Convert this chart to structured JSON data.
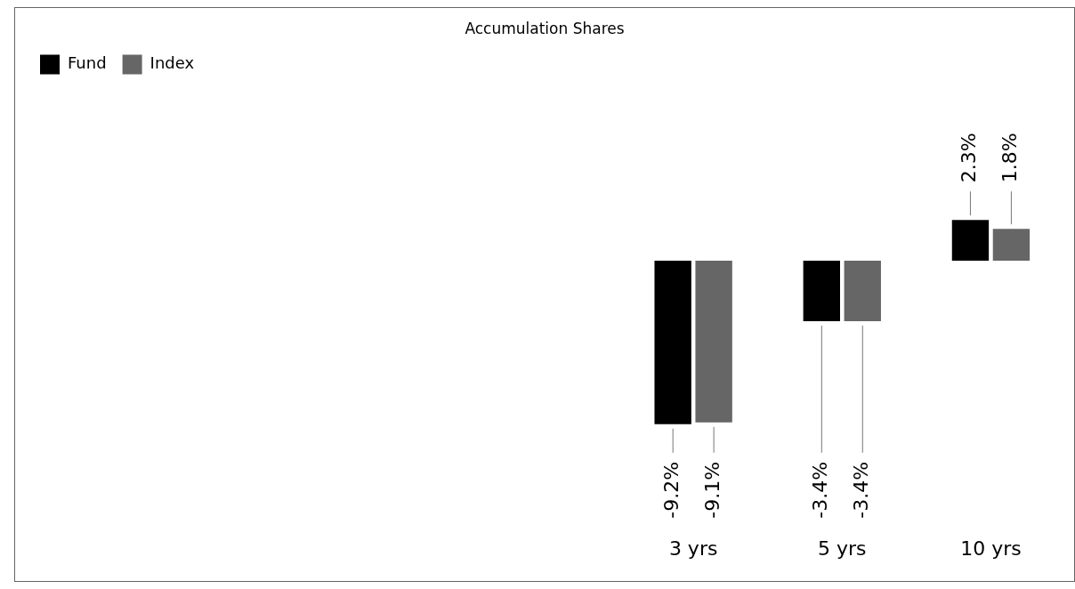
{
  "chart_data": {
    "type": "bar",
    "title": "Accumulation Shares",
    "categories": [
      null,
      null,
      null,
      null,
      "3 yrs",
      "5 yrs",
      "10 yrs"
    ],
    "legend": "top left",
    "grid": false,
    "series": [
      {
        "name": "Fund",
        "color": "#000000",
        "values": [
          null,
          null,
          null,
          null,
          -9.2,
          -3.4,
          2.3
        ],
        "value_labels": [
          null,
          null,
          null,
          null,
          "-9.2%",
          "-3.4%",
          "2.3%"
        ]
      },
      {
        "name": "Index",
        "color": "#666666",
        "values": [
          null,
          null,
          null,
          null,
          -9.1,
          -3.4,
          1.8
        ],
        "value_labels": [
          null,
          null,
          null,
          null,
          "-9.1%",
          "-3.4%",
          "1.8%"
        ]
      }
    ]
  }
}
